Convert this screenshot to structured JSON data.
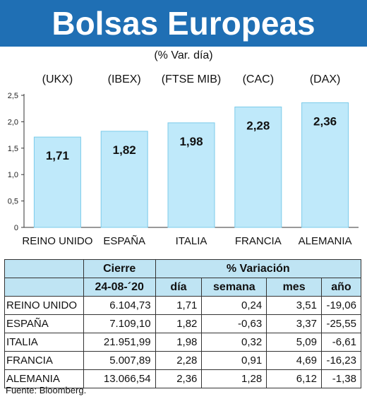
{
  "header": {
    "title": "Bolsas Europeas",
    "subtitle": "(% Var. día)"
  },
  "colors": {
    "banner": "#1f6fb4",
    "bar": "#bfe9fa",
    "bar_stroke": "#7ccbea",
    "table_header": "#bfe4f3"
  },
  "chart_data": {
    "type": "bar",
    "title": "Bolsas Europeas",
    "subtitle": "(% Var. día)",
    "categories": [
      "REINO UNIDO",
      "ESPAÑA",
      "ITALIA",
      "FRANCIA",
      "ALEMANIA"
    ],
    "tickers": [
      "(UKX)",
      "(IBEX)",
      "(FTSE MIB)",
      "(CAC)",
      "(DAX)"
    ],
    "values": [
      1.71,
      1.82,
      1.98,
      2.28,
      2.36
    ],
    "value_labels": [
      "1,71",
      "1,82",
      "1,98",
      "2,28",
      "2,36"
    ],
    "yticks": [
      0,
      0.5,
      1,
      1.5,
      2,
      2.5
    ],
    "ytick_labels": [
      "0",
      "0,5",
      "1,0",
      "1,5",
      "2,0",
      "2,5"
    ],
    "ylim": [
      0,
      2.5
    ],
    "xlabel": "",
    "ylabel": "",
    "grid": false
  },
  "table": {
    "group_headers": {
      "cierre": "Cierre",
      "variacion": "% Variación"
    },
    "sub_headers": {
      "date": "24-08-´20",
      "dia": "día",
      "semana": "semana",
      "mes": "mes",
      "ano": "año"
    },
    "rows": [
      {
        "name": "REINO UNIDO",
        "close": "6.104,73",
        "dia": "1,71",
        "semana": "0,24",
        "mes": "3,51",
        "ano": "-19,06"
      },
      {
        "name": "ESPAÑA",
        "close": "7.109,10",
        "dia": "1,82",
        "semana": "-0,63",
        "mes": "3,37",
        "ano": "-25,55"
      },
      {
        "name": "ITALIA",
        "close": "21.951,99",
        "dia": "1,98",
        "semana": "0,32",
        "mes": "5,09",
        "ano": "-6,61"
      },
      {
        "name": "FRANCIA",
        "close": "5.007,89",
        "dia": "2,28",
        "semana": "0,91",
        "mes": "4,69",
        "ano": "-16,23"
      },
      {
        "name": "ALEMANIA",
        "close": "13.066,54",
        "dia": "2,36",
        "semana": "1,28",
        "mes": "6,12",
        "ano": "-1,38"
      }
    ]
  },
  "source": "Fuente: Bloomberg."
}
